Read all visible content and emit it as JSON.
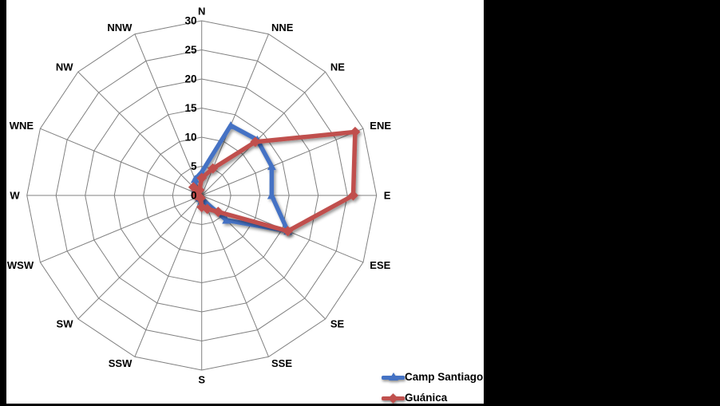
{
  "canvas": {
    "background": "#000000",
    "plot_background": "#ffffff"
  },
  "chart_data": {
    "type": "radar",
    "categories": [
      "N",
      "NNE",
      "NE",
      "ENE",
      "E",
      "ESE",
      "SE",
      "SSE",
      "S",
      "SSW",
      "SW",
      "WSW",
      "W",
      "WNE",
      "NW",
      "NNW"
    ],
    "series": [
      {
        "name": "Camp Santiago",
        "color": "#4472C4",
        "marker": "triangle",
        "values": [
          4,
          13,
          13.5,
          13,
          12,
          16,
          6,
          1,
          1,
          0.5,
          0.5,
          0.5,
          0.5,
          1,
          1.5,
          3
        ]
      },
      {
        "name": "Guánica",
        "color": "#C0504D",
        "marker": "diamond",
        "values": [
          3,
          5,
          13,
          28.5,
          26,
          16,
          4,
          2.5,
          2,
          0.5,
          0.5,
          0.5,
          1,
          1,
          2,
          1
        ]
      }
    ],
    "r_axis": {
      "min": 0,
      "max": 30,
      "ticks": [
        0,
        5,
        10,
        15,
        20,
        25,
        30
      ]
    },
    "grid": true,
    "grid_color": "#808080",
    "legend_position": "bottom-right"
  }
}
